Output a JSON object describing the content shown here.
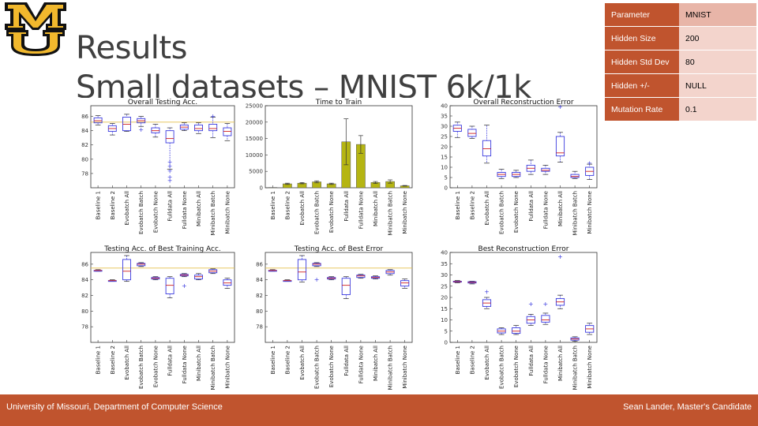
{
  "slide": {
    "title_line1": "Results",
    "title_line2": "Small datasets – MNIST 6k/1k",
    "logo_letters": "MU",
    "footer_left": "University of Missouri, Department of Computer Science",
    "footer_right": "Sean Lander, Master's Candidate",
    "accent_color": "#c0542e",
    "logo_gold": "#f1b82d"
  },
  "params_table": [
    {
      "label": "Parameter",
      "value": "MNIST"
    },
    {
      "label": "Hidden Size",
      "value": "200"
    },
    {
      "label": "Hidden Std Dev",
      "value": "80"
    },
    {
      "label": "Hidden +/-",
      "value": "NULL"
    },
    {
      "label": "Mutation Rate",
      "value": "0.1"
    }
  ],
  "chart_data": [
    {
      "type": "box",
      "title": "Overall Testing Acc.",
      "categories": [
        "Baseline 1",
        "Baseline 2",
        "Evobatch All",
        "Evobatch Batch",
        "Evobatch None",
        "Fulldata All",
        "Fulldata None",
        "Minibatch All",
        "Minibatch Batch",
        "Minibatch None"
      ],
      "yticks": [
        78,
        80,
        82,
        84,
        86
      ],
      "ylim": [
        76,
        87.5
      ],
      "reference_line": 85.2,
      "boxes": [
        [
          84.8,
          85.1,
          85.4,
          85.8,
          86.1
        ],
        [
          83.4,
          83.9,
          84.3,
          84.7,
          85.0
        ],
        [
          83.9,
          84.0,
          84.9,
          85.9,
          86.3
        ],
        [
          84.6,
          85.1,
          85.4,
          85.7,
          86.0
        ],
        [
          83.1,
          83.7,
          84.0,
          84.4,
          84.9
        ],
        [
          78.6,
          82.3,
          82.9,
          84.0,
          84.4
        ],
        [
          84.0,
          84.2,
          84.5,
          84.8,
          85.1
        ],
        [
          83.6,
          84.0,
          84.3,
          84.8,
          85.1
        ],
        [
          83.0,
          84.0,
          84.3,
          84.9,
          85.9
        ],
        [
          82.6,
          83.3,
          83.9,
          84.4,
          85.0
        ]
      ],
      "fliers": [
        [],
        [],
        [],
        [
          84.1
        ],
        [],
        [
          77.0,
          77.5,
          78.3,
          79.0,
          79.6
        ],
        [],
        [],
        [
          86.0
        ],
        []
      ]
    },
    {
      "type": "bar",
      "title": "Time to Train",
      "categories": [
        "Baseline 1",
        "Baseline 2",
        "Evobatch All",
        "Evobatch Batch",
        "Evobatch None",
        "Fulldata All",
        "Fulldata None",
        "Minibatch All",
        "Minibatch Batch",
        "Minibatch None"
      ],
      "values": [
        100,
        1200,
        1400,
        1800,
        1200,
        14000,
        13200,
        1600,
        1900,
        600
      ],
      "errors": [
        0,
        200,
        200,
        300,
        200,
        7000,
        2700,
        300,
        500,
        100
      ],
      "yticks": [
        0,
        5000,
        10000,
        15000,
        20000,
        25000
      ],
      "ylim": [
        0,
        25000
      ],
      "bar_color": "#b5b512"
    },
    {
      "type": "box",
      "title": "Overall Reconstruction Error",
      "categories": [
        "Baseline 1",
        "Baseline 2",
        "Evobatch All",
        "Evobatch Batch",
        "Evobatch None",
        "Fulldata All",
        "Fulldata None",
        "Minibatch All",
        "Minibatch Batch",
        "Minibatch None"
      ],
      "yticks": [
        0,
        5,
        10,
        15,
        20,
        25,
        30,
        35,
        40
      ],
      "ylim": [
        0,
        40
      ],
      "reference_line": null,
      "boxes": [
        [
          24.5,
          27.5,
          29.0,
          30.5,
          32.0
        ],
        [
          24.0,
          25.0,
          26.5,
          28.5,
          30.0
        ],
        [
          12.0,
          15.5,
          19.0,
          23.0,
          30.5
        ],
        [
          4.5,
          5.5,
          6.5,
          7.5,
          9.0
        ],
        [
          5.0,
          5.5,
          6.5,
          7.5,
          8.5
        ],
        [
          6.5,
          8.0,
          9.5,
          11.0,
          13.5
        ],
        [
          6.5,
          8.0,
          8.5,
          9.5,
          11.0
        ],
        [
          12.5,
          15.5,
          17.0,
          25.0,
          27.0
        ],
        [
          4.5,
          5.0,
          5.5,
          6.5,
          8.0
        ],
        [
          4.0,
          6.0,
          8.0,
          10.0,
          11.5
        ]
      ],
      "fliers": [
        [],
        [],
        [],
        [],
        [],
        [],
        [],
        [
          39.5
        ],
        [],
        [
          12.0
        ]
      ]
    },
    {
      "type": "box",
      "title": "Testing Acc. of Best Training Acc.",
      "categories": [
        "Baseline 1",
        "Baseline 2",
        "Evobatch All",
        "Evobatch Batch",
        "Evobatch None",
        "Fulldata All",
        "Fulldata None",
        "Minibatch All",
        "Minibatch Batch",
        "Minibatch None"
      ],
      "yticks": [
        78,
        80,
        82,
        84,
        86
      ],
      "ylim": [
        76,
        87.5
      ],
      "reference_line": 85.5,
      "boxes": [
        [
          85.1,
          85.1,
          85.2,
          85.2,
          85.3
        ],
        [
          83.8,
          83.8,
          83.9,
          83.9,
          84.0
        ],
        [
          83.8,
          84.0,
          85.1,
          86.6,
          87.1
        ],
        [
          85.7,
          85.8,
          86.0,
          86.1,
          86.2
        ],
        [
          84.0,
          84.1,
          84.2,
          84.3,
          84.4
        ],
        [
          81.7,
          82.2,
          83.3,
          84.2,
          84.4
        ],
        [
          84.4,
          84.5,
          84.6,
          84.7,
          84.8
        ],
        [
          84.0,
          84.1,
          84.4,
          84.6,
          84.8
        ],
        [
          84.8,
          84.9,
          85.1,
          85.3,
          85.4
        ],
        [
          82.9,
          83.3,
          83.6,
          84.0,
          84.2
        ]
      ],
      "fliers": [
        [],
        [],
        [],
        [],
        [],
        [],
        [
          83.2
        ],
        [],
        [],
        []
      ]
    },
    {
      "type": "box",
      "title": "Testing Acc. of Best Error",
      "categories": [
        "Baseline 1",
        "Baseline 2",
        "Evobatch All",
        "Evobatch Batch",
        "Evobatch None",
        "Fulldata All",
        "Fulldata None",
        "Minibatch All",
        "Minibatch Batch",
        "Minibatch None"
      ],
      "yticks": [
        78,
        80,
        82,
        84,
        86
      ],
      "ylim": [
        76,
        87.5
      ],
      "reference_line": 85.5,
      "boxes": [
        [
          85.1,
          85.1,
          85.2,
          85.2,
          85.3
        ],
        [
          83.8,
          83.8,
          83.9,
          83.9,
          84.0
        ],
        [
          83.7,
          84.0,
          85.0,
          86.6,
          87.1
        ],
        [
          85.7,
          85.8,
          86.0,
          86.1,
          86.2
        ],
        [
          84.0,
          84.1,
          84.2,
          84.3,
          84.4
        ],
        [
          81.6,
          82.1,
          83.3,
          84.2,
          84.4
        ],
        [
          84.2,
          84.3,
          84.5,
          84.6,
          84.7
        ],
        [
          84.1,
          84.2,
          84.3,
          84.4,
          84.5
        ],
        [
          84.6,
          84.8,
          85.0,
          85.2,
          85.3
        ],
        [
          82.9,
          83.2,
          83.6,
          83.9,
          84.1
        ]
      ],
      "fliers": [
        [],
        [],
        [],
        [
          84.0
        ],
        [],
        [],
        [],
        [],
        [],
        []
      ]
    },
    {
      "type": "box",
      "title": "Best Reconstruction Error",
      "categories": [
        "Baseline 1",
        "Baseline 2",
        "Evobatch All",
        "Evobatch Batch",
        "Evobatch None",
        "Fulldata All",
        "Fulldata None",
        "Minibatch All",
        "Minibatch Batch",
        "Minibatch None"
      ],
      "yticks": [
        0,
        5,
        10,
        15,
        20,
        25,
        30,
        35,
        40
      ],
      "ylim": [
        0,
        40
      ],
      "reference_line": null,
      "boxes": [
        [
          26.5,
          26.8,
          27.0,
          27.2,
          27.5
        ],
        [
          26.0,
          26.4,
          26.7,
          27.0,
          27.2
        ],
        [
          15.0,
          16.0,
          17.5,
          19.0,
          20.0
        ],
        [
          3.5,
          4.2,
          5.0,
          6.0,
          6.5
        ],
        [
          3.5,
          4.0,
          5.0,
          6.5,
          7.5
        ],
        [
          7.5,
          8.5,
          10.0,
          11.5,
          12.5
        ],
        [
          8.0,
          9.0,
          10.0,
          12.0,
          13.0
        ],
        [
          15.0,
          16.5,
          18.0,
          19.5,
          21.0
        ],
        [
          0.5,
          1.0,
          1.5,
          2.0,
          2.5
        ],
        [
          3.5,
          4.5,
          6.0,
          7.5,
          8.5
        ]
      ],
      "fliers": [
        [],
        [],
        [
          22.5
        ],
        [],
        [],
        [
          17.0
        ],
        [
          17.0
        ],
        [
          38.0
        ],
        [],
        []
      ]
    }
  ]
}
